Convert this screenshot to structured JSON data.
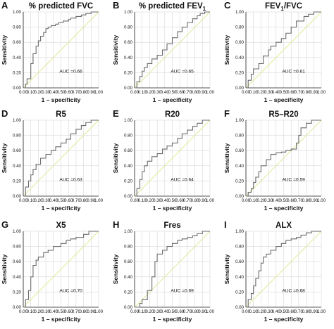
{
  "chart_data": [
    {
      "type": "line",
      "panel_letter": "A",
      "title": "% predicted FVC",
      "title_sub": "",
      "xlabel": "1 – specificity",
      "ylabel": "Sensitivity",
      "xlim": [
        0,
        1
      ],
      "ylim": [
        0,
        1
      ],
      "xticks": [
        "0.00",
        "0.10",
        "0.20",
        "0.30",
        "0.40",
        "0.50",
        "0.60",
        "0.70",
        "0.80",
        "0.90",
        "1.00"
      ],
      "yticks": [
        "0.00",
        "0.20",
        "0.40",
        "0.60",
        "0.80",
        "1.00"
      ],
      "grid": true,
      "annotation": "AUC =0.66",
      "reference_line": [
        [
          0,
          0
        ],
        [
          1,
          1
        ]
      ],
      "series": [
        {
          "x": [
            0.0,
            0.03,
            0.03,
            0.05,
            0.05,
            0.1,
            0.1,
            0.13,
            0.13,
            0.17,
            0.17,
            0.2,
            0.2,
            0.23,
            0.23,
            0.27,
            0.27,
            0.3,
            0.3,
            0.33,
            0.33,
            0.37,
            0.37,
            0.43,
            0.43,
            0.47,
            0.47,
            0.53,
            0.53,
            0.6,
            0.6,
            0.63,
            0.63,
            0.7,
            0.7,
            0.77,
            0.77,
            0.83,
            0.83,
            0.9,
            0.9,
            1.0
          ],
          "y": [
            0.0,
            0.0,
            0.05,
            0.05,
            0.12,
            0.12,
            0.32,
            0.32,
            0.45,
            0.45,
            0.55,
            0.55,
            0.62,
            0.62,
            0.68,
            0.68,
            0.73,
            0.73,
            0.78,
            0.78,
            0.8,
            0.8,
            0.82,
            0.82,
            0.84,
            0.84,
            0.86,
            0.86,
            0.88,
            0.88,
            0.9,
            0.9,
            0.92,
            0.92,
            0.94,
            0.94,
            0.96,
            0.96,
            0.98,
            0.98,
            1.0,
            1.0
          ]
        }
      ]
    },
    {
      "type": "line",
      "panel_letter": "B",
      "title": "% predicted FEV",
      "title_sub": "1",
      "xlabel": "1 – specificity",
      "ylabel": "Sensitivity",
      "xlim": [
        0,
        1
      ],
      "ylim": [
        0,
        1
      ],
      "xticks": [
        "0.00",
        "0.10",
        "0.20",
        "0.30",
        "0.40",
        "0.50",
        "0.60",
        "0.70",
        "0.80",
        "0.90",
        "1.00"
      ],
      "yticks": [
        "0.00",
        "0.20",
        "0.40",
        "0.60",
        "0.80",
        "1.00"
      ],
      "grid": true,
      "annotation": "AUC =0.65",
      "reference_line": [
        [
          0,
          0
        ],
        [
          1,
          1
        ]
      ],
      "series": [
        {
          "x": [
            0.0,
            0.03,
            0.03,
            0.07,
            0.07,
            0.1,
            0.1,
            0.13,
            0.13,
            0.17,
            0.17,
            0.23,
            0.23,
            0.3,
            0.3,
            0.37,
            0.37,
            0.43,
            0.43,
            0.5,
            0.5,
            0.57,
            0.57,
            0.63,
            0.63,
            0.7,
            0.7,
            0.77,
            0.77,
            0.83,
            0.83,
            0.87,
            0.87,
            0.93,
            0.93,
            1.0
          ],
          "y": [
            0.0,
            0.0,
            0.08,
            0.08,
            0.15,
            0.15,
            0.22,
            0.22,
            0.27,
            0.27,
            0.32,
            0.32,
            0.38,
            0.38,
            0.43,
            0.43,
            0.5,
            0.5,
            0.58,
            0.58,
            0.66,
            0.66,
            0.74,
            0.74,
            0.8,
            0.8,
            0.86,
            0.86,
            0.91,
            0.91,
            0.95,
            0.95,
            0.98,
            0.98,
            1.0,
            1.0
          ]
        }
      ]
    },
    {
      "type": "line",
      "panel_letter": "C",
      "title": "FEV",
      "title_sub": "1",
      "title_suffix": "/FVC",
      "xlabel": "1 – specificity",
      "ylabel": "Sensitivity",
      "xlim": [
        0,
        1
      ],
      "ylim": [
        0,
        1
      ],
      "xticks": [
        "0.00",
        "0.10",
        "0.20",
        "0.30",
        "0.40",
        "0.50",
        "0.60",
        "0.70",
        "0.80",
        "0.90",
        "1.00"
      ],
      "yticks": [
        "0.00",
        "0.20",
        "0.40",
        "0.60",
        "0.80",
        "1.00"
      ],
      "grid": true,
      "annotation": "AUC =0.61",
      "reference_line": [
        [
          0,
          0
        ],
        [
          1,
          1
        ]
      ],
      "series": [
        {
          "x": [
            0.0,
            0.03,
            0.03,
            0.07,
            0.07,
            0.1,
            0.1,
            0.17,
            0.17,
            0.23,
            0.23,
            0.3,
            0.3,
            0.33,
            0.33,
            0.4,
            0.4,
            0.47,
            0.47,
            0.53,
            0.53,
            0.6,
            0.6,
            0.67,
            0.67,
            0.77,
            0.77,
            0.83,
            0.83,
            0.9,
            0.9,
            1.0
          ],
          "y": [
            0.0,
            0.0,
            0.1,
            0.1,
            0.18,
            0.18,
            0.25,
            0.25,
            0.32,
            0.32,
            0.42,
            0.42,
            0.5,
            0.5,
            0.55,
            0.55,
            0.6,
            0.6,
            0.65,
            0.65,
            0.72,
            0.72,
            0.8,
            0.8,
            0.88,
            0.88,
            0.94,
            0.94,
            0.97,
            0.97,
            1.0,
            1.0
          ]
        }
      ]
    },
    {
      "type": "line",
      "panel_letter": "D",
      "title": "R5",
      "title_sub": "",
      "xlabel": "1 – specificity",
      "ylabel": "Sensitivity",
      "xlim": [
        0,
        1
      ],
      "ylim": [
        0,
        1
      ],
      "xticks": [
        "0.00",
        "0.10",
        "0.20",
        "0.30",
        "0.40",
        "0.50",
        "0.60",
        "0.70",
        "0.80",
        "0.90",
        "1.00"
      ],
      "yticks": [
        "0.00",
        "0.20",
        "0.40",
        "0.60",
        "0.80",
        "1.00"
      ],
      "grid": true,
      "annotation": "AUC =0.63",
      "reference_line": [
        [
          0,
          0
        ],
        [
          1,
          1
        ]
      ],
      "series": [
        {
          "x": [
            0.0,
            0.03,
            0.03,
            0.07,
            0.07,
            0.1,
            0.1,
            0.13,
            0.13,
            0.17,
            0.17,
            0.23,
            0.23,
            0.3,
            0.3,
            0.37,
            0.37,
            0.43,
            0.43,
            0.5,
            0.5,
            0.57,
            0.57,
            0.63,
            0.63,
            0.7,
            0.7,
            0.77,
            0.77,
            0.83,
            0.83,
            0.9,
            0.9,
            1.0
          ],
          "y": [
            0.0,
            0.0,
            0.12,
            0.12,
            0.2,
            0.2,
            0.28,
            0.28,
            0.35,
            0.35,
            0.42,
            0.42,
            0.5,
            0.5,
            0.55,
            0.55,
            0.6,
            0.6,
            0.65,
            0.65,
            0.7,
            0.7,
            0.75,
            0.75,
            0.82,
            0.82,
            0.88,
            0.88,
            0.93,
            0.93,
            0.97,
            0.97,
            1.0,
            1.0
          ]
        }
      ]
    },
    {
      "type": "line",
      "panel_letter": "E",
      "title": "R20",
      "title_sub": "",
      "xlabel": "1 – specificity",
      "ylabel": "Sensitivity",
      "xlim": [
        0,
        1
      ],
      "ylim": [
        0,
        1
      ],
      "xticks": [
        "0.00",
        "0.10",
        "0.20",
        "0.30",
        "0.40",
        "0.50",
        "0.60",
        "0.70",
        "0.80",
        "0.90",
        "1.00"
      ],
      "yticks": [
        "0.00",
        "0.20",
        "0.40",
        "0.60",
        "0.80",
        "1.00"
      ],
      "grid": true,
      "annotation": "AUC =0.64",
      "reference_line": [
        [
          0,
          0
        ],
        [
          1,
          1
        ]
      ],
      "series": [
        {
          "x": [
            0.0,
            0.03,
            0.03,
            0.07,
            0.07,
            0.1,
            0.1,
            0.13,
            0.13,
            0.17,
            0.17,
            0.23,
            0.23,
            0.3,
            0.3,
            0.37,
            0.37,
            0.43,
            0.43,
            0.5,
            0.5,
            0.57,
            0.57,
            0.63,
            0.63,
            0.7,
            0.7,
            0.77,
            0.77,
            0.83,
            0.83,
            0.9,
            0.9,
            1.0
          ],
          "y": [
            0.0,
            0.0,
            0.1,
            0.1,
            0.22,
            0.22,
            0.32,
            0.32,
            0.4,
            0.4,
            0.46,
            0.46,
            0.52,
            0.52,
            0.56,
            0.56,
            0.62,
            0.62,
            0.66,
            0.66,
            0.7,
            0.7,
            0.76,
            0.76,
            0.82,
            0.82,
            0.87,
            0.87,
            0.92,
            0.92,
            0.96,
            0.96,
            1.0,
            1.0
          ]
        }
      ]
    },
    {
      "type": "line",
      "panel_letter": "F",
      "title": "R5–R20",
      "title_sub": "",
      "xlabel": "1 – specificity",
      "ylabel": "Sensitivity",
      "xlim": [
        0,
        1
      ],
      "ylim": [
        0,
        1
      ],
      "xticks": [
        "0.00",
        "0.10",
        "0.20",
        "0.30",
        "0.40",
        "0.50",
        "0.60",
        "0.70",
        "0.80",
        "0.90",
        "1.00"
      ],
      "yticks": [
        "0.00",
        "0.20",
        "0.40",
        "0.60",
        "0.80",
        "1.00"
      ],
      "grid": true,
      "annotation": "AUC =0.59",
      "reference_line": [
        [
          0,
          0
        ],
        [
          1,
          1
        ]
      ],
      "series": [
        {
          "x": [
            0.0,
            0.03,
            0.03,
            0.07,
            0.07,
            0.1,
            0.1,
            0.13,
            0.13,
            0.17,
            0.17,
            0.2,
            0.2,
            0.27,
            0.27,
            0.33,
            0.33,
            0.4,
            0.4,
            0.47,
            0.47,
            0.53,
            0.53,
            0.6,
            0.6,
            0.67,
            0.67,
            0.7,
            0.7,
            0.73,
            0.73,
            0.8,
            0.8,
            0.87,
            0.87,
            1.0
          ],
          "y": [
            0.0,
            0.0,
            0.05,
            0.05,
            0.1,
            0.1,
            0.18,
            0.18,
            0.25,
            0.25,
            0.32,
            0.32,
            0.4,
            0.4,
            0.48,
            0.48,
            0.55,
            0.55,
            0.57,
            0.57,
            0.58,
            0.58,
            0.6,
            0.6,
            0.62,
            0.62,
            0.7,
            0.7,
            0.8,
            0.8,
            0.9,
            0.9,
            0.96,
            0.96,
            1.0,
            1.0
          ]
        }
      ]
    },
    {
      "type": "line",
      "panel_letter": "G",
      "title": "X5",
      "title_sub": "",
      "xlabel": "1 – specificity",
      "ylabel": "Sensitivity",
      "xlim": [
        0,
        1
      ],
      "ylim": [
        0,
        1
      ],
      "xticks": [
        "0.00",
        "0.10",
        "0.20",
        "0.30",
        "0.40",
        "0.50",
        "0.60",
        "0.70",
        "0.80",
        "0.90",
        "1.00"
      ],
      "yticks": [
        "0.00",
        "0.20",
        "0.40",
        "0.60",
        "0.80",
        "1.00"
      ],
      "grid": true,
      "annotation": "AUC =0.70",
      "reference_line": [
        [
          0,
          0
        ],
        [
          1,
          1
        ]
      ],
      "series": [
        {
          "x": [
            0.0,
            0.03,
            0.03,
            0.07,
            0.07,
            0.1,
            0.1,
            0.13,
            0.13,
            0.17,
            0.17,
            0.2,
            0.2,
            0.27,
            0.27,
            0.33,
            0.33,
            0.4,
            0.4,
            0.5,
            0.5,
            0.57,
            0.57,
            0.63,
            0.63,
            0.7,
            0.7,
            0.8,
            0.8,
            0.87,
            0.87,
            1.0
          ],
          "y": [
            0.0,
            0.0,
            0.1,
            0.1,
            0.22,
            0.22,
            0.4,
            0.4,
            0.55,
            0.55,
            0.62,
            0.62,
            0.66,
            0.66,
            0.72,
            0.72,
            0.75,
            0.75,
            0.8,
            0.8,
            0.84,
            0.84,
            0.88,
            0.88,
            0.9,
            0.9,
            0.92,
            0.92,
            0.96,
            0.96,
            1.0,
            1.0
          ]
        }
      ]
    },
    {
      "type": "line",
      "panel_letter": "H",
      "title": "Fres",
      "title_sub": "",
      "xlabel": "1 – specificity",
      "ylabel": "Sensitivity",
      "xlim": [
        0,
        1
      ],
      "ylim": [
        0,
        1
      ],
      "xticks": [
        "0.00",
        "0.10",
        "0.20",
        "0.30",
        "0.40",
        "0.50",
        "0.60",
        "0.70",
        "0.80",
        "0.90",
        "1.00"
      ],
      "yticks": [
        "0.00",
        "0.20",
        "0.40",
        "0.60",
        "0.80",
        "1.00"
      ],
      "grid": true,
      "annotation": "AUC =0.69",
      "reference_line": [
        [
          0,
          0
        ],
        [
          1,
          1
        ]
      ],
      "series": [
        {
          "x": [
            0.0,
            0.07,
            0.07,
            0.1,
            0.1,
            0.17,
            0.17,
            0.23,
            0.23,
            0.27,
            0.27,
            0.3,
            0.3,
            0.37,
            0.37,
            0.43,
            0.43,
            0.5,
            0.5,
            0.57,
            0.57,
            0.63,
            0.63,
            0.7,
            0.7,
            0.77,
            0.77,
            0.83,
            0.83,
            0.9,
            0.9,
            1.0
          ],
          "y": [
            0.0,
            0.0,
            0.05,
            0.05,
            0.1,
            0.1,
            0.22,
            0.22,
            0.4,
            0.4,
            0.6,
            0.6,
            0.7,
            0.7,
            0.75,
            0.75,
            0.8,
            0.8,
            0.84,
            0.84,
            0.88,
            0.88,
            0.9,
            0.9,
            0.92,
            0.92,
            0.94,
            0.94,
            0.97,
            0.97,
            1.0,
            1.0
          ]
        }
      ]
    },
    {
      "type": "line",
      "panel_letter": "I",
      "title": "ALX",
      "title_sub": "",
      "xlabel": "1 – specificity",
      "ylabel": "Sensitivity",
      "xlim": [
        0,
        1
      ],
      "ylim": [
        0,
        1
      ],
      "xticks": [
        "0.00",
        "0.10",
        "0.20",
        "0.30",
        "0.40",
        "0.50",
        "0.60",
        "0.70",
        "0.80",
        "0.90",
        "1.00"
      ],
      "yticks": [
        "0.00",
        "0.20",
        "0.40",
        "0.60",
        "0.80",
        "1.00"
      ],
      "grid": true,
      "annotation": "AUC =0.68",
      "reference_line": [
        [
          0,
          0
        ],
        [
          1,
          1
        ]
      ],
      "series": [
        {
          "x": [
            0.0,
            0.03,
            0.03,
            0.07,
            0.07,
            0.1,
            0.1,
            0.13,
            0.13,
            0.17,
            0.17,
            0.2,
            0.2,
            0.23,
            0.23,
            0.27,
            0.27,
            0.33,
            0.33,
            0.4,
            0.4,
            0.47,
            0.47,
            0.53,
            0.53,
            0.6,
            0.6,
            0.67,
            0.67,
            0.73,
            0.73,
            0.8,
            0.8,
            0.87,
            0.87,
            1.0
          ],
          "y": [
            0.0,
            0.0,
            0.1,
            0.1,
            0.18,
            0.18,
            0.28,
            0.28,
            0.38,
            0.38,
            0.48,
            0.48,
            0.58,
            0.58,
            0.66,
            0.66,
            0.7,
            0.7,
            0.75,
            0.75,
            0.8,
            0.8,
            0.84,
            0.84,
            0.88,
            0.88,
            0.9,
            0.9,
            0.92,
            0.92,
            0.95,
            0.95,
            0.98,
            0.98,
            1.0,
            1.0
          ]
        }
      ]
    }
  ]
}
